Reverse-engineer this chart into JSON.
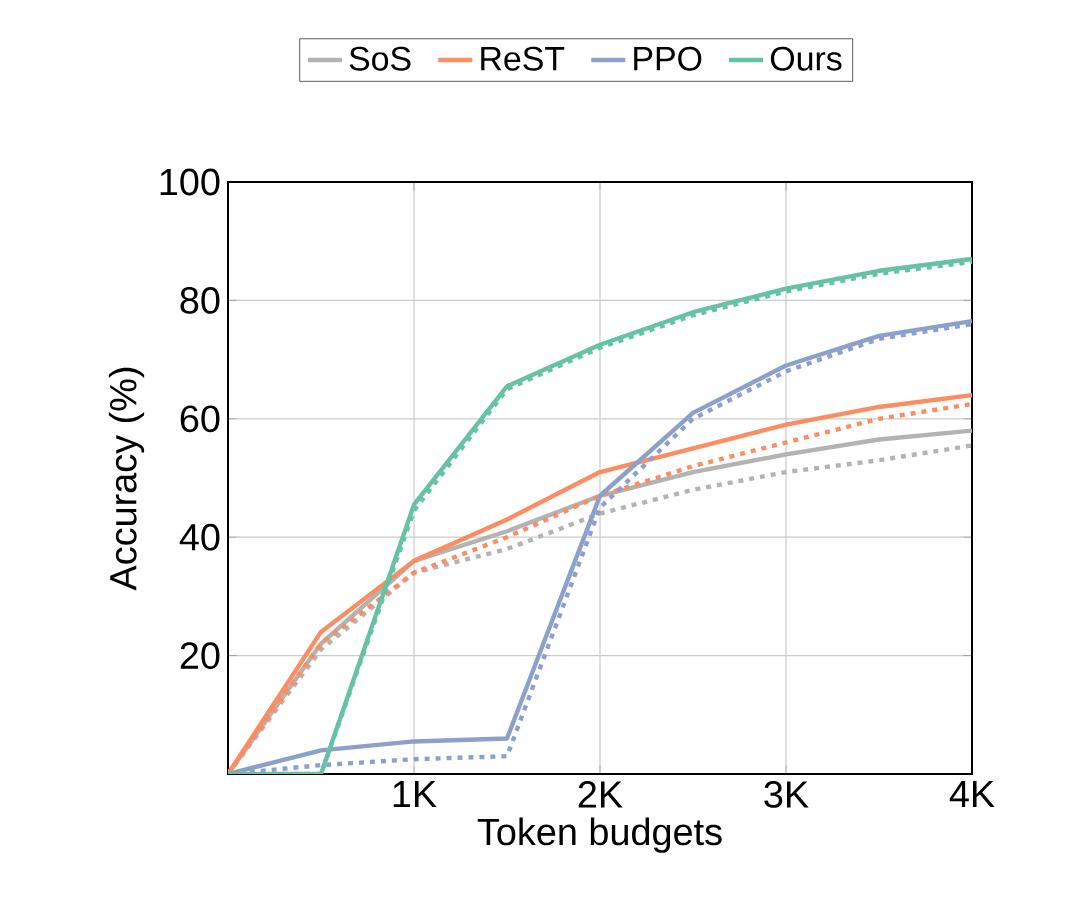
{
  "chart_data": {
    "type": "line",
    "xlabel": "Token budgets",
    "ylabel": "Accuracy (%)",
    "x": [
      0,
      500,
      1000,
      1500,
      2000,
      2500,
      3000,
      3500,
      4000
    ],
    "xlim": [
      0,
      4000
    ],
    "ylim": [
      0,
      100
    ],
    "xticks": [
      {
        "value": 1000,
        "label": "1K"
      },
      {
        "value": 2000,
        "label": "2K"
      },
      {
        "value": 3000,
        "label": "3K"
      },
      {
        "value": 4000,
        "label": "4K"
      }
    ],
    "yticks": [
      20,
      40,
      60,
      80,
      100
    ],
    "grid": true,
    "legend": "top",
    "marker": "none",
    "series": [
      {
        "name": "SoS",
        "color": "#b3b3b3",
        "line_style": "solid",
        "values": [
          0,
          22,
          36,
          41,
          47,
          51,
          54,
          56.5,
          58
        ]
      },
      {
        "color": "#b3b3b3",
        "line_style": "dotted",
        "values": [
          0,
          21,
          34,
          38,
          44,
          48,
          51,
          53,
          55.5
        ]
      },
      {
        "name": "ReST",
        "color": "#fc8d62",
        "line_style": "solid",
        "values": [
          0,
          24,
          36,
          43,
          51,
          55,
          59,
          62,
          64
        ]
      },
      {
        "color": "#fc8d62",
        "line_style": "dotted",
        "values": [
          0,
          22,
          34,
          40,
          47,
          52,
          56,
          60,
          62.5
        ]
      },
      {
        "name": "PPO",
        "color": "#8da0cb",
        "line_style": "solid",
        "values": [
          0,
          4,
          5.5,
          6,
          47,
          61,
          69,
          74,
          76.5
        ]
      },
      {
        "color": "#8da0cb",
        "line_style": "dotted",
        "values": [
          0,
          1.5,
          2.5,
          3,
          45,
          60,
          68,
          73.5,
          76
        ]
      },
      {
        "name": "Ours",
        "color": "#66c2a5",
        "line_style": "solid",
        "values": [
          0,
          0,
          45.5,
          65.5,
          72.5,
          78,
          82,
          85,
          87
        ]
      },
      {
        "color": "#66c2a5",
        "line_style": "dotted",
        "values": [
          0,
          0,
          44.5,
          65,
          72,
          77.5,
          81.5,
          84.5,
          86.5
        ]
      }
    ]
  }
}
